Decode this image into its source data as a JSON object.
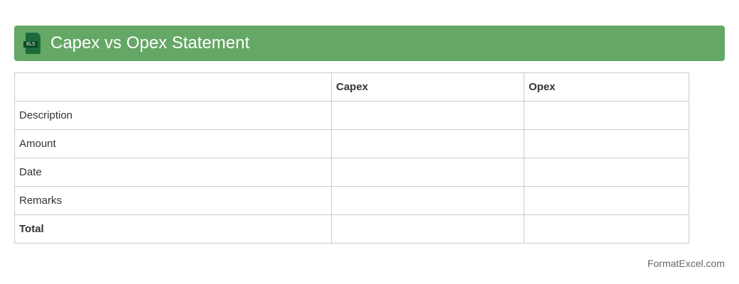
{
  "header": {
    "title": "Capex vs Opex Statement",
    "icon": "xls-file-icon",
    "icon_label": "XLS",
    "color": "#65a765"
  },
  "table": {
    "columns": [
      "",
      "Capex",
      "Opex"
    ],
    "rows": [
      [
        "Description",
        "",
        ""
      ],
      [
        "Amount",
        "",
        ""
      ],
      [
        "Date",
        "",
        ""
      ],
      [
        "Remarks",
        "",
        ""
      ],
      [
        "Total",
        "",
        ""
      ]
    ]
  },
  "footer": {
    "brand": "FormatExcel.com"
  }
}
